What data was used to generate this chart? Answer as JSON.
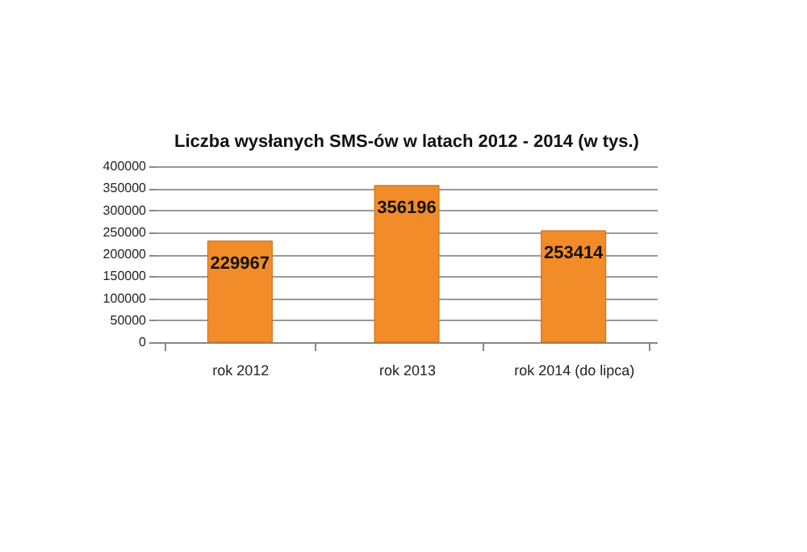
{
  "chart_data": {
    "type": "bar",
    "title": "Liczba wysłanych SMS-ów w latach 2012 - 2014 (w tys.)",
    "categories": [
      "rok 2012",
      "rok 2013",
      "rok 2014 (do lipca)"
    ],
    "values": [
      229967,
      356196,
      253414
    ],
    "color": "#f28c28",
    "ylim": [
      0,
      400000
    ],
    "yticks": [
      0,
      50000,
      100000,
      150000,
      200000,
      250000,
      300000,
      350000,
      400000
    ],
    "grid": "y",
    "data_labels": true
  }
}
